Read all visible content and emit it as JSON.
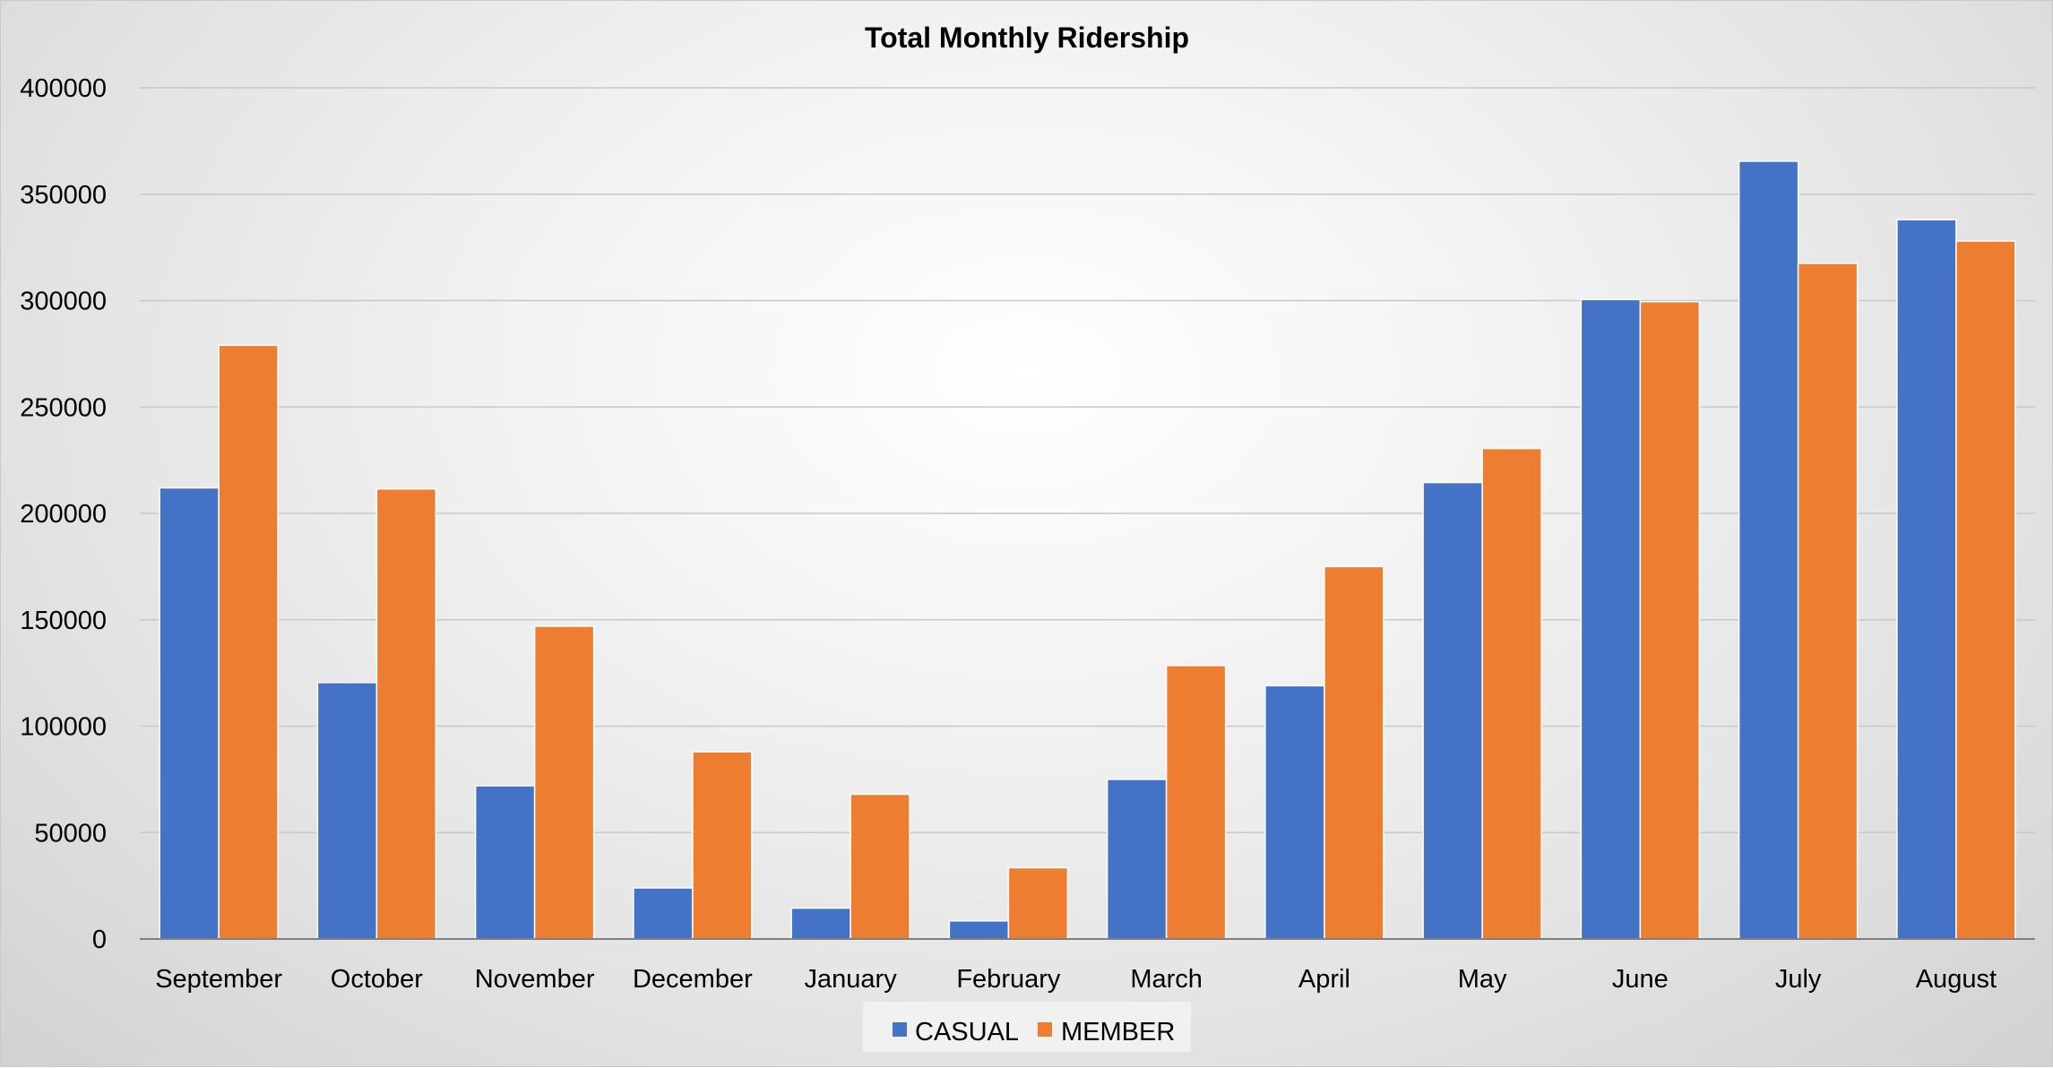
{
  "chart_data": {
    "type": "bar",
    "title": "Total Monthly Ridership",
    "xlabel": "",
    "ylabel": "",
    "categories": [
      "September",
      "October",
      "November",
      "December",
      "January",
      "February",
      "March",
      "April",
      "May",
      "June",
      "July",
      "August"
    ],
    "series": [
      {
        "name": "CASUAL",
        "color": "#4472C4",
        "values": [
          212000,
          120500,
          72000,
          24000,
          14500,
          8500,
          75000,
          119000,
          214500,
          300500,
          365500,
          338000
        ]
      },
      {
        "name": "MEMBER",
        "color": "#ED7D31",
        "values": [
          279000,
          211500,
          147000,
          88000,
          68000,
          33500,
          128500,
          175000,
          230500,
          299500,
          317500,
          328000
        ]
      }
    ],
    "ylim": [
      0,
      400000
    ],
    "yticks": [
      "0",
      "50000",
      "100000",
      "150000",
      "200000",
      "250000",
      "300000",
      "350000",
      "400000"
    ],
    "grid": true,
    "legend_position": "bottom"
  }
}
